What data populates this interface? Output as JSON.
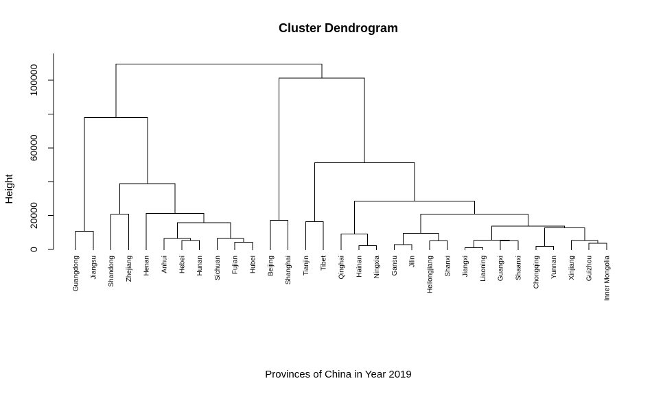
{
  "chart_data": {
    "type": "dendrogram",
    "title": "Cluster Dendrogram",
    "xlabel": "Provinces of China in Year 2019",
    "ylabel": "Height",
    "ylim": [
      0,
      113000
    ],
    "yticks": [
      0,
      20000,
      60000,
      100000
    ],
    "ytick_labels": [
      "0",
      "20000",
      "60000",
      "100000"
    ],
    "leaves": [
      "Guangdong",
      "Jiangsu",
      "Shandong",
      "Zhejiang",
      "Henan",
      "Anhui",
      "Hebei",
      "Hunan",
      "Sichuan",
      "Fujian",
      "Hubei",
      "Beijing",
      "Shanghai",
      "Tianjin",
      "Tibet",
      "Qinghai",
      "Hainan",
      "Ningxia",
      "Gansu",
      "Jilin",
      "Heilongjiang",
      "Shanxi",
      "Jiangxi",
      "Liaoning",
      "Guangxi",
      "Shaanxi",
      "Chongqing",
      "Yunnan",
      "Xinjiang",
      "Guizhou",
      "Inner Mongolia"
    ],
    "merges": [
      {
        "left": "Hebei",
        "right": "Hunan",
        "height": 5200
      },
      {
        "left": "Anhui",
        "right": "M1",
        "height": 6500
      },
      {
        "left": "Fujian",
        "right": "Hubei",
        "height": 4300
      },
      {
        "left": "Sichuan",
        "right": "M3",
        "height": 6500
      },
      {
        "left": "M2",
        "right": "M4",
        "height": 15800
      },
      {
        "left": "Henan",
        "right": "M5",
        "height": 21300
      },
      {
        "left": "Shandong",
        "right": "Zhejiang",
        "height": 20800
      },
      {
        "left": "M7",
        "right": "M6",
        "height": 38800
      },
      {
        "left": "Guangdong",
        "right": "Jiangsu",
        "height": 10800
      },
      {
        "left": "M9",
        "right": "M8",
        "height": 78000
      },
      {
        "left": "Beijing",
        "right": "Shanghai",
        "height": 17300
      },
      {
        "left": "Tianjin",
        "right": "Tibet",
        "height": 16300
      },
      {
        "left": "Hainan",
        "right": "Ningxia",
        "height": 2300
      },
      {
        "left": "Qinghai",
        "right": "M13",
        "height": 9200
      },
      {
        "left": "Gansu",
        "right": "Jilin",
        "height": 2800
      },
      {
        "left": "Heilongjiang",
        "right": "Shanxi",
        "height": 5000
      },
      {
        "left": "M15",
        "right": "M16",
        "height": 9500
      },
      {
        "left": "Jiangxi",
        "right": "Liaoning",
        "height": 1000
      },
      {
        "left": "Guangxi",
        "right": "Shaanxi",
        "height": 5000
      },
      {
        "left": "M18",
        "right": "M19",
        "height": 5500
      },
      {
        "left": "Chongqing",
        "right": "Yunnan",
        "height": 1800
      },
      {
        "left": "Guizhou",
        "right": "Inner Mongolia",
        "height": 3600
      },
      {
        "left": "Xinjiang",
        "right": "M22",
        "height": 5300
      },
      {
        "left": "M21",
        "right": "M23",
        "height": 12800
      },
      {
        "left": "M20",
        "right": "M24",
        "height": 13800
      },
      {
        "left": "M17",
        "right": "M25",
        "height": 20800
      },
      {
        "left": "M14",
        "right": "M26",
        "height": 28500
      },
      {
        "left": "M12",
        "right": "M27",
        "height": 51300
      },
      {
        "left": "M11",
        "right": "M28",
        "height": 101300
      },
      {
        "left": "M10",
        "right": "M29",
        "height": 109600
      }
    ]
  }
}
